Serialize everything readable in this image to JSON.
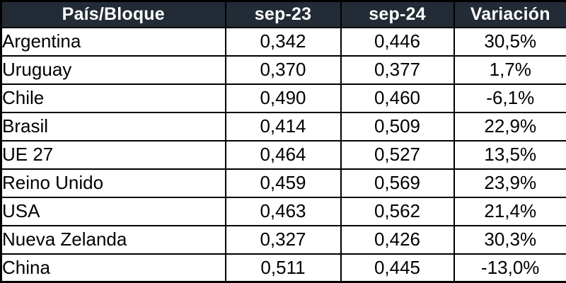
{
  "chart_data": {
    "type": "table",
    "title": "",
    "columns": [
      "País/Bloque",
      "sep-23",
      "sep-24",
      "Variación"
    ],
    "rows": [
      [
        "Argentina",
        "0,342",
        "0,446",
        "30,5%"
      ],
      [
        "Uruguay",
        "0,370",
        "0,377",
        "1,7%"
      ],
      [
        "Chile",
        "0,490",
        "0,460",
        "-6,1%"
      ],
      [
        "Brasil",
        "0,414",
        "0,509",
        "22,9%"
      ],
      [
        "UE 27",
        "0,464",
        "0,527",
        "13,5%"
      ],
      [
        "Reino Unido",
        "0,459",
        "0,569",
        "23,9%"
      ],
      [
        "USA",
        "0,463",
        "0,562",
        "21,4%"
      ],
      [
        "Nueva Zelanda",
        "0,327",
        "0,426",
        "30,3%"
      ],
      [
        "China",
        "0,511",
        "0,445",
        "-13,0%"
      ]
    ],
    "layout": {
      "grid": true,
      "header_bg": "#232b36",
      "header_text_color": "#ffffff",
      "border_color": "#000000",
      "row_bg": "#ffffff",
      "body_text_color": "#000000"
    }
  }
}
